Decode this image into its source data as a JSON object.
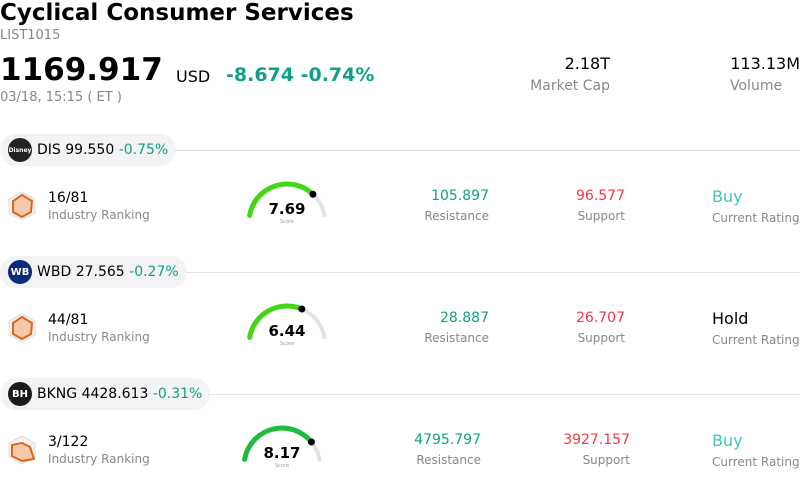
{
  "header": {
    "title": "Cyclical Consumer Services",
    "code": "LIST1015",
    "price": "1169.917",
    "currency": "USD",
    "change": "-8.674",
    "change_pct": "-0.74%",
    "time": "03/18, 15:15  ( ET )",
    "market_cap": "2.18T",
    "market_cap_label": "Market Cap",
    "volume": "113.13M",
    "volume_label": "Volume"
  },
  "stocks": [
    {
      "ticker": "DIS",
      "price": "99.550",
      "change_pct": "-0.75%",
      "logo": "Disney",
      "rank": "16/81",
      "rank_label": "Industry Ranking",
      "score": "7.69",
      "score_value": 7.69,
      "score_label": "Score",
      "gauge_color": "#44d615",
      "resistance": "105.897",
      "resistance_label": "Resistance",
      "support": "96.577",
      "support_label": "Support",
      "rating": "Buy",
      "rating_color": "#3cc8b4",
      "rating_label": "Current Rating"
    },
    {
      "ticker": "WBD",
      "price": "27.565",
      "change_pct": "-0.27%",
      "logo": "WB",
      "rank": "44/81",
      "rank_label": "Industry Ranking",
      "score": "6.44",
      "score_value": 6.44,
      "score_label": "Score",
      "gauge_color": "#44d615",
      "resistance": "28.887",
      "resistance_label": "Resistance",
      "support": "26.707",
      "support_label": "Support",
      "rating": "Hold",
      "rating_color": "#000000",
      "rating_label": "Current Rating"
    },
    {
      "ticker": "BKNG",
      "price": "4428.613",
      "change_pct": "-0.31%",
      "logo": "BH",
      "rank": "3/122",
      "rank_label": "Industry Ranking",
      "score": "8.17",
      "score_value": 8.17,
      "score_label": "Score",
      "gauge_color": "#1fba3f",
      "resistance": "4795.797",
      "resistance_label": "Resistance",
      "support": "3927.157",
      "support_label": "Support",
      "rating": "Buy",
      "rating_color": "#3cc8b4",
      "rating_label": "Current Rating"
    }
  ]
}
